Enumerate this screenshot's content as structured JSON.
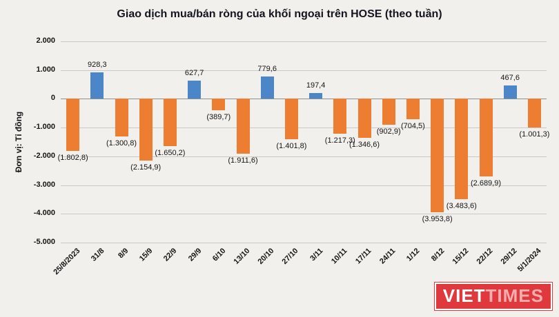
{
  "title": "Giao dịch mua/bán ròng của khối ngoại trên HOSE (theo tuần)",
  "y_axis_label": "Đơn vị: Tỉ đồng",
  "logo": {
    "part1": "VIET",
    "part2": "TIMES"
  },
  "colors": {
    "positive": "#4a86c8",
    "negative": "#ed7d31",
    "background": "#f2f0ed",
    "grid": "#c9c9c9",
    "zero_line": "#8f8f8f",
    "logo_red": "#e0393d"
  },
  "chart_data": {
    "type": "bar",
    "title": "Giao dịch mua/bán ròng của khối ngoại trên HOSE (theo tuần)",
    "xlabel": "",
    "ylabel": "Đơn vị: Tỉ đồng",
    "ylim": [
      -5000,
      2000
    ],
    "grid": true,
    "legend": false,
    "y_ticks": [
      {
        "value": 2000,
        "label": "2.000"
      },
      {
        "value": 1000,
        "label": "1.000"
      },
      {
        "value": 0,
        "label": "0"
      },
      {
        "value": -1000,
        "label": "-1.000"
      },
      {
        "value": -2000,
        "label": "-2.000"
      },
      {
        "value": -3000,
        "label": "-3.000"
      },
      {
        "value": -4000,
        "label": "-4.000"
      },
      {
        "value": -5000,
        "label": "-5.000"
      }
    ],
    "categories": [
      "25/8/2023",
      "31/8",
      "8/9",
      "15/9",
      "22/9",
      "29/9",
      "6/10",
      "13/10",
      "20/10",
      "27/10",
      "3/11",
      "10/11",
      "17/11",
      "24/11",
      "1/12",
      "8/12",
      "15/12",
      "22/12",
      "29/12",
      "5/1/2024"
    ],
    "values": [
      -1802.8,
      928.3,
      -1300.8,
      -2154.9,
      -1650.2,
      627.7,
      -389.7,
      -1911.6,
      779.6,
      -1401.8,
      197.4,
      -1217.3,
      -1346.6,
      -902.9,
      -704.5,
      -3953.8,
      -3483.6,
      -2689.9,
      467.6,
      -1001.3
    ],
    "value_labels": [
      "(1.802,8)",
      "928,3",
      "(1.300,8)",
      "(2.154,9)",
      "(1.650,2)",
      "627,7",
      "(389,7)",
      "(1.911,6)",
      "779,6",
      "(1.401,8)",
      "197,4",
      "(1.217,3)",
      "(1.346,6)",
      "(902,9)",
      "(704,5)",
      "(3.953,8)",
      "(3.483,6)",
      "(2.689,9)",
      "467,6",
      "(1.001,3)"
    ]
  }
}
